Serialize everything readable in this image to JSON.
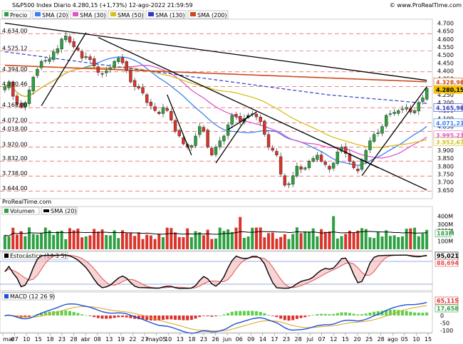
{
  "header": {
    "title": "S&P500 Index Diario 4.280,15 (+1,73%) 12-ago-2022 21:59:59",
    "site": "© www.ProRealTime.com",
    "watermark": "ProRealTime.com"
  },
  "colors": {
    "up": "#2ea043",
    "down": "#d9342b",
    "sma20": "#3b82f6",
    "sma30": "#e056c8",
    "sma50": "#d4c21a",
    "sma130": "#2b3cc4",
    "sma200": "#cc4a1a",
    "hline": "#e03030",
    "osc_fast": "#000000",
    "osc_slow": "#e05050",
    "macd_line": "#1f4fd6",
    "macd_signal": "#d9a21a",
    "macd_hist": "#5ecf4a"
  },
  "legend": {
    "price": "Precio",
    "sma20": "SMA (20)",
    "sma30": "SMA (30)",
    "sma50": "SMA (50)",
    "sma130": "SMA (130)",
    "sma200": "SMA (200)",
    "volume": "Volumen",
    "volsma": "SMA (20)",
    "stoch": "Estocástico (14 3 5)",
    "macd": "MACD (12 26 9)"
  },
  "chart_data": [
    {
      "type": "candlestick",
      "name": "price",
      "y_range": [
        3600,
        4720
      ],
      "y_ticks": [
        "4.700",
        "4.650",
        "4.600",
        "4.550",
        "4.500",
        "4.450",
        "4.400",
        "4.350",
        "4.300",
        "4.250",
        "4.200",
        "4.150",
        "4.100",
        "4.050",
        "4.000",
        "3.950",
        "3.900",
        "3.850",
        "3.800",
        "3.750",
        "3.700",
        "3.650"
      ],
      "level_labels": [
        "4.634,00",
        "4.525,12",
        "4.394,00",
        "4.300,46",
        "4.168,00",
        "4.072,00",
        "4.018,00",
        "3.920,00",
        "3.832,00",
        "3.738,00",
        "3.644,00"
      ],
      "levels": [
        4634,
        4525.12,
        4394,
        4300.46,
        4168,
        4072,
        4018,
        3920,
        3832,
        3738,
        3644
      ],
      "right_labels": [
        {
          "text": "4.328,98",
          "value": 4328.98,
          "color": "#cc4a1a"
        },
        {
          "text": "4.280,15",
          "value": 4280.15,
          "color": "#f2c200"
        },
        {
          "text": "4.165,98",
          "value": 4165.98,
          "color": "#2b3cc4"
        },
        {
          "text": "4.071,23",
          "value": 4071.23,
          "color": "#3b82f6"
        },
        {
          "text": "3.995,23",
          "value": 3995.23,
          "color": "#e056c8"
        },
        {
          "text": "3.952,67",
          "value": 3952.67,
          "color": "#d4c21a"
        }
      ],
      "closes": [
        4300,
        4330,
        4240,
        4190,
        4170,
        4200,
        4280,
        4360,
        4410,
        4460,
        4465,
        4475,
        4520,
        4540,
        4600,
        4620,
        4580,
        4550,
        4530,
        4480,
        4490,
        4470,
        4430,
        4390,
        4380,
        4400,
        4420,
        4460,
        4480,
        4450,
        4400,
        4330,
        4300,
        4290,
        4260,
        4200,
        4180,
        4150,
        4130,
        4170,
        4150,
        4090,
        4020,
        3990,
        3940,
        3920,
        3930,
        3990,
        4050,
        4020,
        3920,
        3870,
        3920,
        3960,
        3990,
        4060,
        4120,
        4110,
        4080,
        4100,
        4120,
        4130,
        4110,
        4080,
        4000,
        3920,
        3900,
        3870,
        3750,
        3680,
        3690,
        3740,
        3800,
        3780,
        3790,
        3830,
        3850,
        3870,
        3830,
        3810,
        3780,
        3820,
        3890,
        3920,
        3880,
        3830,
        3790,
        3770,
        3840,
        3900,
        3960,
        4000,
        4010,
        4050,
        4120,
        4130,
        4140,
        4150,
        4160,
        4170,
        4140,
        4150,
        4200,
        4230,
        4290
      ],
      "x_labels": [
        "mar",
        "07",
        "10",
        "15",
        "18",
        "23",
        "28",
        "abr",
        "08",
        "13",
        "19",
        "22",
        "27",
        "may05",
        "10",
        "13",
        "18",
        "23",
        "26",
        "jun",
        "06",
        "09",
        "14",
        "17",
        "23",
        "28",
        "jul",
        "07",
        "12",
        "15",
        "20",
        "25",
        "28",
        "ago",
        "05",
        "10",
        "15"
      ],
      "trendlines": 8
    },
    {
      "type": "bar",
      "name": "volume",
      "y_ticks": [
        "400M",
        "300M",
        "225M",
        "100M"
      ],
      "right_labels": [
        {
          "text": "183M",
          "color": "#2ea043"
        }
      ],
      "sma_label": "SMA (20)"
    },
    {
      "type": "line",
      "name": "stochastic",
      "right_labels": [
        {
          "text": "95,021",
          "color": "#000000"
        },
        {
          "text": "88,694",
          "color": "#e05050"
        }
      ],
      "bands": [
        80,
        20
      ]
    },
    {
      "type": "line",
      "name": "macd",
      "y_ticks": [
        "100",
        "50",
        "0",
        "-50",
        "-100"
      ],
      "right_labels": [
        {
          "text": "65,115",
          "color": "#d9342b"
        },
        {
          "text": "17,658",
          "color": "#2ea043"
        }
      ]
    }
  ]
}
